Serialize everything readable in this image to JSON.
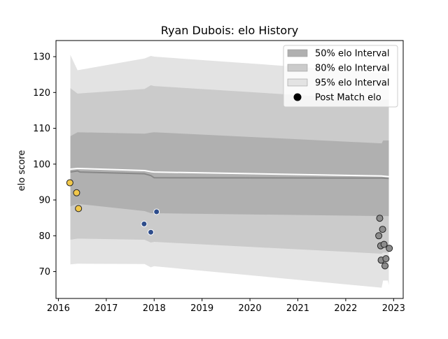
{
  "chart_data": {
    "type": "area",
    "title": "Ryan Dubois: elo History",
    "xlabel": "",
    "ylabel": "elo score",
    "xlim": [
      2015.95,
      2023.2
    ],
    "ylim": [
      62.5,
      134.5
    ],
    "x_ticks": [
      {
        "value": 2016,
        "label": "2016"
      },
      {
        "value": 2017,
        "label": "2017"
      },
      {
        "value": 2018,
        "label": "2018"
      },
      {
        "value": 2019,
        "label": "2019"
      },
      {
        "value": 2020,
        "label": "2020"
      },
      {
        "value": 2021,
        "label": "2021"
      },
      {
        "value": 2022,
        "label": "2022"
      },
      {
        "value": 2023,
        "label": "2023"
      }
    ],
    "y_ticks": [
      {
        "value": 70,
        "label": "70"
      },
      {
        "value": 80,
        "label": "80"
      },
      {
        "value": 90,
        "label": "90"
      },
      {
        "value": 100,
        "label": "100"
      },
      {
        "value": 110,
        "label": "110"
      },
      {
        "value": 120,
        "label": "120"
      },
      {
        "value": 130,
        "label": "130"
      }
    ],
    "grid": false,
    "legend_position": "top-right",
    "legend": [
      {
        "label": "50% elo Interval",
        "kind": "band",
        "color": "#b0b0b0"
      },
      {
        "label": "80% elo Interval",
        "kind": "band",
        "color": "#cbcbcb"
      },
      {
        "label": "95% elo Interval",
        "kind": "band",
        "color": "#e3e3e3"
      },
      {
        "label": "Post Match elo",
        "kind": "marker",
        "color": "#000000"
      }
    ],
    "bands": [
      {
        "level": "95%",
        "color": "#e3e3e3",
        "x": [
          2016.25,
          2016.4,
          2017.8,
          2017.93,
          2018.0,
          2022.75,
          2022.78,
          2022.88,
          2022.9
        ],
        "upper": [
          130.5,
          126.2,
          129.5,
          130.2,
          130.0,
          125.5,
          125.5,
          125.3,
          125.3
        ],
        "lower": [
          72.0,
          72.2,
          72.1,
          71.2,
          71.5,
          65.5,
          67.5,
          67.5,
          66.2
        ]
      },
      {
        "level": "80%",
        "color": "#cbcbcb",
        "x": [
          2016.25,
          2016.4,
          2017.8,
          2017.93,
          2018.0,
          2022.75,
          2022.78,
          2022.88,
          2022.9
        ],
        "upper": [
          121.2,
          119.7,
          121.0,
          122.0,
          121.8,
          117.8,
          118.0,
          118.0,
          118.0
        ],
        "lower": [
          78.9,
          79.2,
          78.9,
          78.1,
          78.3,
          75.0,
          75.3,
          75.3,
          75.5
        ]
      },
      {
        "level": "50%",
        "color": "#b0b0b0",
        "x": [
          2016.25,
          2016.4,
          2017.8,
          2017.93,
          2018.0,
          2022.75,
          2022.78,
          2022.88,
          2022.9
        ],
        "upper": [
          107.8,
          108.9,
          108.5,
          108.8,
          108.9,
          105.8,
          106.6,
          106.6,
          106.6
        ],
        "lower": [
          88.2,
          88.9,
          86.9,
          86.3,
          86.3,
          85.5,
          85.5,
          85.5,
          85.5
        ]
      }
    ],
    "lines": [
      {
        "name": "upper_line",
        "color": "#ffffff",
        "width": 2,
        "x": [
          2016.25,
          2016.4,
          2017.8,
          2017.93,
          2018.0,
          2022.75,
          2022.9
        ],
        "y": [
          98.6,
          98.8,
          98.2,
          97.9,
          97.8,
          96.7,
          96.5
        ]
      },
      {
        "name": "median_line",
        "color": "#888888",
        "width": 2,
        "x": [
          2016.25,
          2016.4,
          2016.45,
          2017.8,
          2017.93,
          2018.0,
          2022.75,
          2022.9
        ],
        "y": [
          97.8,
          98.1,
          97.8,
          97.3,
          96.8,
          96.2,
          96.1,
          96.0
        ]
      }
    ],
    "points": [
      {
        "x": 2016.24,
        "y": 94.8,
        "color": "#f2c84b",
        "edge": "#222222",
        "size": 4.5
      },
      {
        "x": 2016.38,
        "y": 92.0,
        "color": "#f2c84b",
        "edge": "#222222",
        "size": 4.5
      },
      {
        "x": 2016.42,
        "y": 87.6,
        "color": "#f2c84b",
        "edge": "#222222",
        "size": 4.5
      },
      {
        "x": 2017.79,
        "y": 83.3,
        "color": "#2e4d8b",
        "edge": "#ffffff",
        "size": 4.0
      },
      {
        "x": 2017.93,
        "y": 81.0,
        "color": "#2e4d8b",
        "edge": "#ffffff",
        "size": 4.0
      },
      {
        "x": 2018.05,
        "y": 86.7,
        "color": "#2e4d8b",
        "edge": "#ffffff",
        "size": 4.0
      },
      {
        "x": 2022.71,
        "y": 84.9,
        "color": "#8c8c8c",
        "edge": "#222222",
        "size": 4.5
      },
      {
        "x": 2022.77,
        "y": 81.8,
        "color": "#8c8c8c",
        "edge": "#222222",
        "size": 4.5
      },
      {
        "x": 2022.69,
        "y": 80.0,
        "color": "#8c8c8c",
        "edge": "#222222",
        "size": 4.5
      },
      {
        "x": 2022.73,
        "y": 77.2,
        "color": "#8c8c8c",
        "edge": "#222222",
        "size": 4.5
      },
      {
        "x": 2022.8,
        "y": 77.6,
        "color": "#8c8c8c",
        "edge": "#222222",
        "size": 4.5
      },
      {
        "x": 2022.91,
        "y": 76.5,
        "color": "#8c8c8c",
        "edge": "#222222",
        "size": 4.5
      },
      {
        "x": 2022.74,
        "y": 73.2,
        "color": "#8c8c8c",
        "edge": "#222222",
        "size": 4.5
      },
      {
        "x": 2022.84,
        "y": 73.6,
        "color": "#8c8c8c",
        "edge": "#222222",
        "size": 4.5
      },
      {
        "x": 2022.82,
        "y": 71.6,
        "color": "#8c8c8c",
        "edge": "#222222",
        "size": 4.5
      }
    ]
  }
}
